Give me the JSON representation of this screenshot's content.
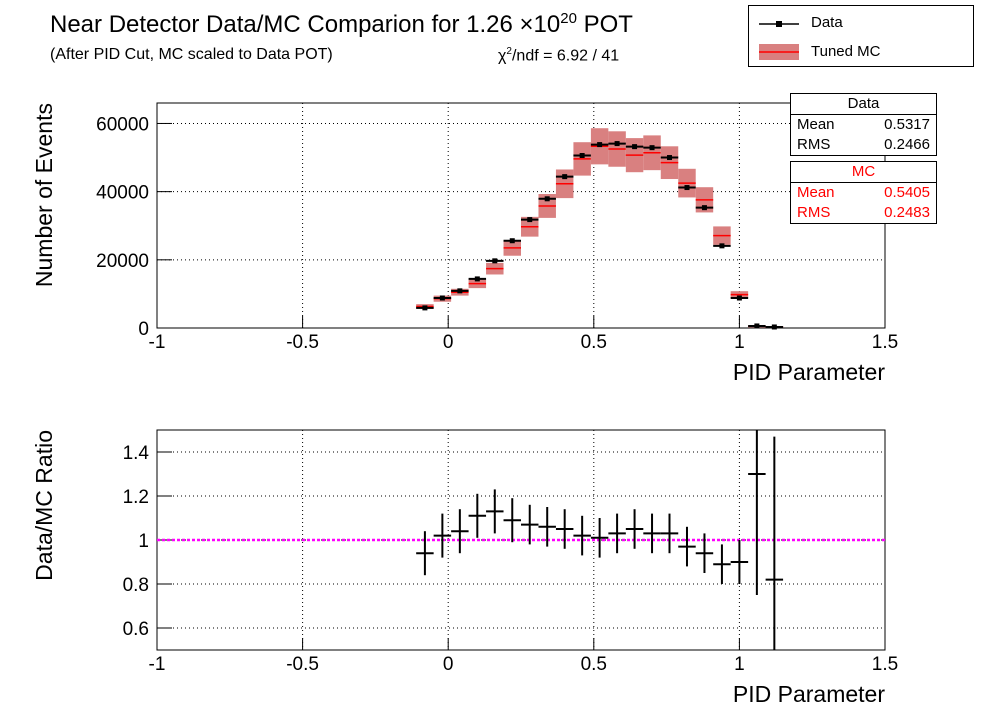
{
  "header": {
    "title": [
      "Near Detector Data/MC Comparion for 1.26 ×10",
      "20",
      " POT"
    ],
    "subtitle": "(After PID Cut, MC scaled to Data POT)",
    "chi2": [
      "χ",
      "2",
      "/ndf = 6.92 / 41"
    ]
  },
  "legend": [
    "Data",
    "Tuned MC"
  ],
  "stats": [
    {
      "title": "Data",
      "color": "#000000",
      "rows": [
        [
          "Mean",
          "0.5317"
        ],
        [
          "RMS",
          "0.2466"
        ]
      ]
    },
    {
      "title": "MC",
      "color": "#ff0000",
      "rows": [
        [
          "Mean",
          "0.5405"
        ],
        [
          "RMS",
          "0.2483"
        ]
      ]
    }
  ],
  "chart_data": [
    {
      "type": "errorbar",
      "x_label": "PID Parameter",
      "y_label": "Number of Events",
      "xlim": [
        -1,
        1.5
      ],
      "xticks": [
        -1,
        -0.5,
        0,
        0.5,
        1,
        1.5
      ],
      "ylim": [
        0,
        66000
      ],
      "yticks": [
        0,
        20000,
        40000,
        60000
      ],
      "grid": true,
      "bin_width": 0.06,
      "x": [
        -0.08,
        -0.02,
        0.04,
        0.1,
        0.16,
        0.22,
        0.28,
        0.34,
        0.4,
        0.46,
        0.52,
        0.58,
        0.64,
        0.7,
        0.76,
        0.82,
        0.88,
        0.94,
        1.0,
        1.06,
        1.12
      ],
      "series": [
        {
          "name": "Tuned MC",
          "color": "#ff0000",
          "band_color": "#d98080",
          "values": [
            6300,
            8600,
            10500,
            13000,
            17400,
            23500,
            29700,
            35800,
            42300,
            49600,
            53300,
            52500,
            50700,
            51400,
            48500,
            42500,
            37600,
            27100,
            9800,
            460,
            370
          ],
          "errors": [
            700,
            900,
            1000,
            1300,
            1700,
            2300,
            2900,
            3500,
            4200,
            4900,
            5300,
            5200,
            5000,
            5100,
            4800,
            4200,
            3700,
            2700,
            1000,
            200,
            200
          ]
        },
        {
          "name": "Data",
          "color": "#000000",
          "values": [
            5900,
            8800,
            10900,
            14400,
            19700,
            25600,
            31800,
            37900,
            44400,
            50600,
            53800,
            54100,
            53200,
            52900,
            50000,
            41200,
            35300,
            24100,
            8800,
            600,
            300
          ]
        }
      ]
    },
    {
      "type": "errorbar",
      "x_label": "PID Parameter",
      "y_label": "Data/MC Ratio",
      "xlim": [
        -1,
        1.5
      ],
      "xticks": [
        -1,
        -0.5,
        0,
        0.5,
        1,
        1.5
      ],
      "ylim": [
        0.5,
        1.5
      ],
      "yticks": [
        0.6,
        0.8,
        1,
        1.2,
        1.4
      ],
      "grid": true,
      "bin_width": 0.06,
      "reference_line": 1,
      "reference_color": "#ff00ff",
      "x": [
        -0.08,
        -0.02,
        0.04,
        0.1,
        0.16,
        0.22,
        0.28,
        0.34,
        0.4,
        0.46,
        0.52,
        0.58,
        0.64,
        0.7,
        0.76,
        0.82,
        0.88,
        0.94,
        1.0,
        1.06,
        1.12
      ],
      "series": [
        {
          "name": "Data/MC Ratio",
          "color": "#000000",
          "values": [
            0.94,
            1.02,
            1.04,
            1.11,
            1.13,
            1.09,
            1.07,
            1.06,
            1.05,
            1.02,
            1.01,
            1.03,
            1.05,
            1.03,
            1.03,
            0.97,
            0.94,
            0.89,
            0.9,
            1.3,
            0.82
          ],
          "errors": [
            0.1,
            0.1,
            0.1,
            0.1,
            0.1,
            0.1,
            0.09,
            0.09,
            0.09,
            0.09,
            0.09,
            0.09,
            0.09,
            0.09,
            0.09,
            0.09,
            0.09,
            0.09,
            0.1,
            0.55,
            0.65
          ]
        }
      ]
    }
  ]
}
